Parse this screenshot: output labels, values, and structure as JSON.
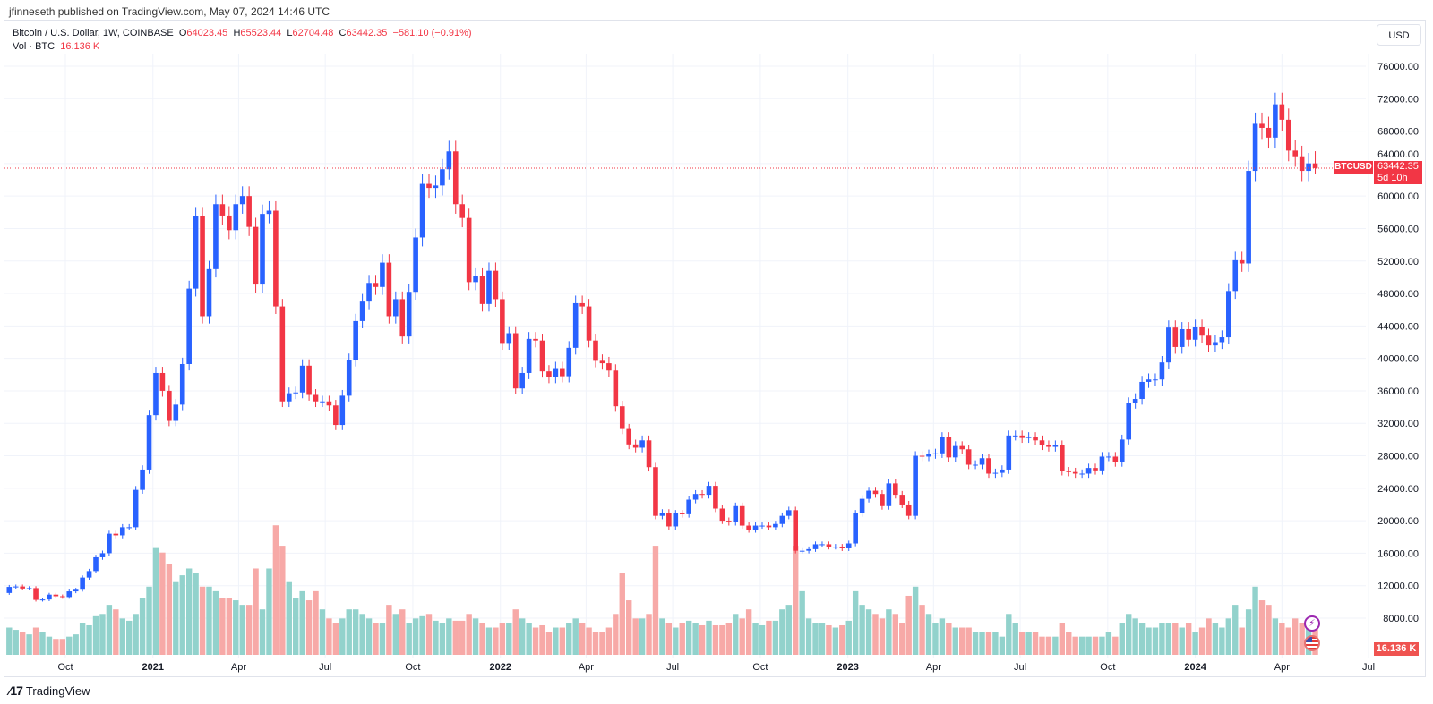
{
  "published": "jfinneseth published on TradingView.com, May 07, 2024 14:46 UTC",
  "legend": {
    "symbol": "Bitcoin / U.S. Dollar, 1W, COINBASE",
    "open_label": "O",
    "open": "64023.45",
    "high_label": "H",
    "high": "65523.44",
    "low_label": "L",
    "low": "62704.48",
    "close_label": "C",
    "close": "63442.35",
    "change": "−581.10 (−0.91%)",
    "vol_label": "Vol · BTC",
    "vol_value": "16.136 K"
  },
  "currency_button": "USD",
  "price_tag": {
    "symbol": "BTCUSD",
    "price": "63442.35",
    "countdown": "5d 10h"
  },
  "volume_tag": "16.136 K",
  "footer_logo": "TradingView",
  "icons": [
    "lightning-icon",
    "us-flag-icon",
    "tradingview-logo-icon"
  ],
  "colors": {
    "up": "#2962ff",
    "down": "#f23645",
    "vol_up": "#92d2cc",
    "vol_down": "#f7a9a7",
    "grid": "#f0f3fa"
  },
  "chart_data": {
    "type": "candlestick",
    "interval": "1W",
    "first_week": "2020-08-03",
    "first_open": 11100,
    "y_ticks": [
      8000,
      12000,
      16000,
      20000,
      24000,
      28000,
      32000,
      36000,
      40000,
      44000,
      48000,
      52000,
      56000,
      60000,
      64000,
      68000,
      72000,
      76000
    ],
    "x_ticks": [
      {
        "label": "Oct",
        "date": "2020-10-01"
      },
      {
        "label": "2021",
        "date": "2021-01-01"
      },
      {
        "label": "Apr",
        "date": "2021-04-01"
      },
      {
        "label": "Jul",
        "date": "2021-07-01"
      },
      {
        "label": "Oct",
        "date": "2021-10-01"
      },
      {
        "label": "2022",
        "date": "2022-01-01"
      },
      {
        "label": "Apr",
        "date": "2022-04-01"
      },
      {
        "label": "Jul",
        "date": "2022-07-01"
      },
      {
        "label": "Oct",
        "date": "2022-10-01"
      },
      {
        "label": "2023",
        "date": "2023-01-01"
      },
      {
        "label": "Apr",
        "date": "2023-04-01"
      },
      {
        "label": "Jul",
        "date": "2023-07-01"
      },
      {
        "label": "Oct",
        "date": "2023-10-01"
      },
      {
        "label": "2024",
        "date": "2024-01-01"
      },
      {
        "label": "Apr",
        "date": "2024-04-01"
      },
      {
        "label": "Jul",
        "date": "2024-07-01"
      }
    ],
    "last_candle": {
      "open": 64023.45,
      "high": 65523.44,
      "low": 62704.48,
      "close": 63442.35,
      "volume_k": 16.136
    },
    "close_k": [
      11.85,
      11.9,
      11.65,
      11.7,
      10.25,
      10.3,
      10.9,
      10.7,
      10.6,
      11.3,
      11.5,
      13.0,
      13.8,
      15.5,
      16.0,
      18.4,
      18.2,
      19.2,
      19.2,
      23.8,
      26.3,
      33.0,
      38.2,
      36.0,
      32.3,
      34.3,
      39.3,
      48.6,
      57.5,
      45.2,
      51.0,
      59.0,
      57.6,
      55.8,
      59.0,
      60.0,
      56.2,
      49.1,
      57.8,
      58.2,
      46.4,
      34.7,
      35.7,
      35.8,
      39.1,
      35.5,
      34.7,
      34.7,
      34.2,
      31.8,
      35.4,
      39.8,
      44.6,
      47.0,
      49.3,
      48.8,
      51.8,
      45.2,
      47.3,
      42.7,
      48.2,
      54.9,
      61.5,
      61.0,
      61.3,
      63.3,
      65.5,
      59.0,
      57.3,
      49.4,
      50.1,
      46.7,
      50.8,
      47.3,
      41.9,
      43.1,
      36.3,
      38.2,
      42.4,
      42.2,
      38.4,
      37.7,
      38.8,
      37.8,
      41.3,
      46.8,
      46.4,
      42.2,
      39.7,
      39.4,
      38.5,
      34.1,
      31.3,
      29.4,
      29.0,
      29.9,
      26.6,
      20.6,
      21.0,
      19.3,
      20.9,
      20.8,
      22.6,
      23.3,
      23.2,
      24.3,
      21.5,
      20.0,
      19.8,
      21.8,
      19.4,
      18.9,
      19.4,
      19.4,
      19.2,
      19.6,
      20.6,
      21.3,
      16.3,
      16.3,
      16.5,
      17.1,
      17.1,
      16.8,
      16.8,
      16.6,
      17.2,
      20.9,
      22.7,
      23.7,
      23.3,
      21.8,
      24.6,
      23.2,
      22.0,
      20.6,
      28.0,
      27.9,
      28.2,
      28.3,
      30.3,
      27.8,
      29.2,
      28.8,
      26.9,
      26.9,
      27.7,
      25.8,
      25.9,
      26.3,
      30.5,
      30.5,
      30.2,
      30.3,
      29.9,
      29.3,
      29.1,
      29.3,
      26.1,
      26.0,
      25.8,
      25.8,
      26.5,
      26.2,
      27.9,
      27.9,
      27.2,
      30.0,
      34.5,
      35.0,
      37.1,
      37.4,
      37.4,
      39.5,
      43.8,
      41.4,
      43.6,
      42.3,
      43.9,
      42.8,
      41.6,
      42.0,
      42.6,
      48.3,
      52.1,
      51.7,
      63.1,
      68.9,
      68.4,
      67.2,
      71.3,
      69.4,
      65.6,
      64.9,
      63.1,
      64.02345,
      63.44235
    ],
    "volume_k": [
      12,
      11,
      10,
      9,
      12,
      10,
      8,
      7,
      7,
      8,
      9,
      14,
      13,
      17,
      18,
      22,
      20,
      16,
      15,
      18,
      25,
      30,
      47,
      45,
      40,
      32,
      35,
      38,
      36,
      30,
      30,
      28,
      25,
      25,
      24,
      22,
      22,
      38,
      20,
      38,
      57,
      48,
      32,
      25,
      28,
      24,
      28,
      20,
      16,
      14,
      16,
      20,
      20,
      18,
      16,
      14,
      14,
      22,
      18,
      20,
      14,
      16,
      17,
      18,
      15,
      14,
      16,
      15,
      15,
      18,
      16,
      14,
      12,
      12,
      14,
      14,
      20,
      16,
      14,
      12,
      13,
      10,
      12,
      12,
      14,
      16,
      14,
      12,
      10,
      10,
      12,
      18,
      36,
      24,
      16,
      16,
      18,
      48,
      16,
      14,
      12,
      14,
      15,
      14,
      13,
      15,
      13,
      13,
      14,
      18,
      16,
      20,
      14,
      13,
      15,
      15,
      20,
      22,
      48,
      28,
      16,
      14,
      14,
      13,
      12,
      13,
      15,
      28,
      22,
      20,
      18,
      16,
      20,
      18,
      14,
      26,
      30,
      22,
      18,
      14,
      16,
      14,
      12,
      12,
      12,
      10,
      10,
      10,
      10,
      8,
      18,
      14,
      10,
      10,
      10,
      8,
      8,
      8,
      14,
      10,
      8,
      8,
      8,
      8,
      8,
      10,
      8,
      14,
      18,
      16,
      14,
      12,
      12,
      14,
      14,
      14,
      12,
      14,
      10,
      12,
      16,
      14,
      12,
      16,
      22,
      12,
      20,
      30,
      24,
      22,
      16,
      14,
      12,
      16,
      14,
      12,
      16.136
    ]
  }
}
